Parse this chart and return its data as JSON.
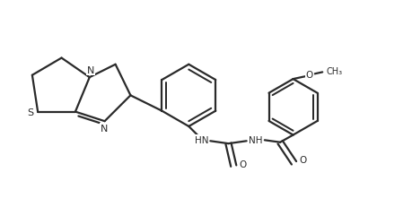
{
  "background_color": "#ffffff",
  "line_color": "#2a2a2a",
  "line_width": 1.6,
  "figsize": [
    4.59,
    2.32
  ],
  "dpi": 100,
  "xlim": [
    0,
    9.5
  ],
  "ylim": [
    0,
    4.8
  ]
}
